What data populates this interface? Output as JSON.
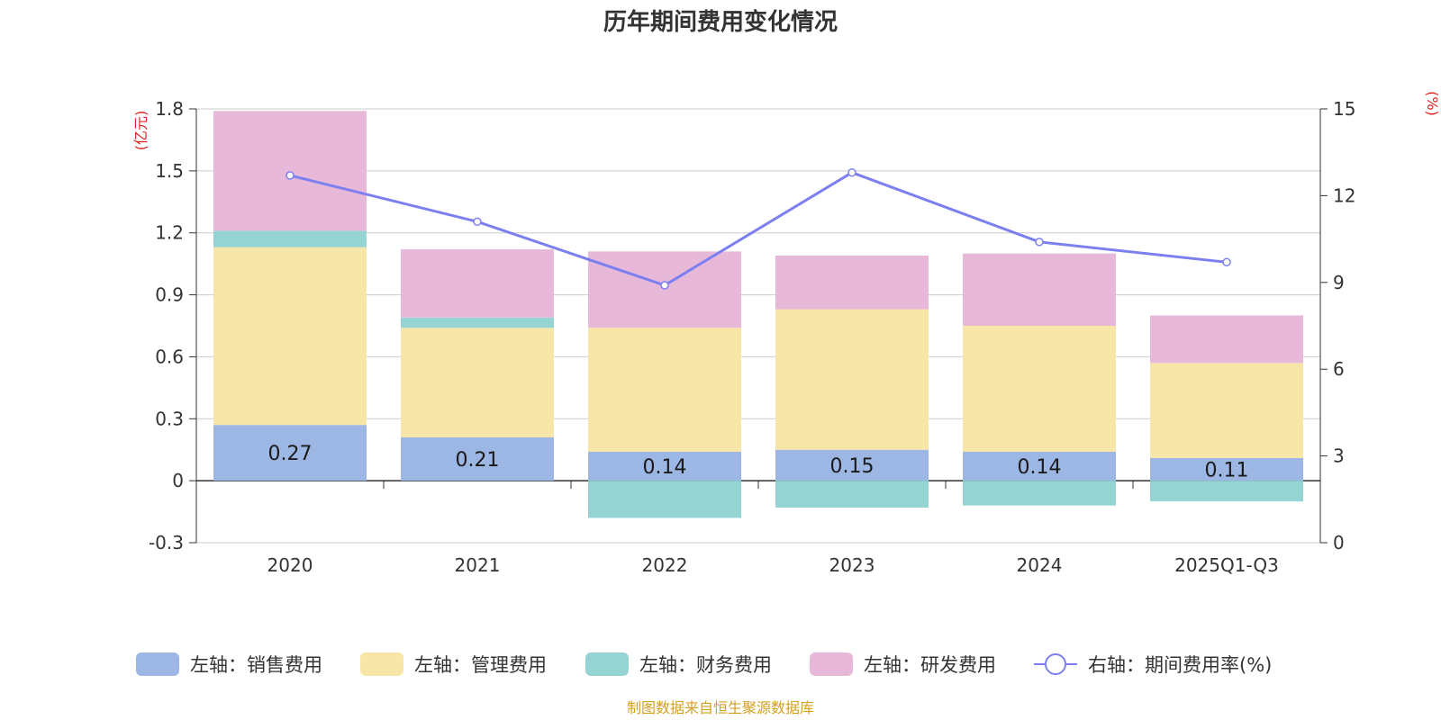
{
  "chart_data": {
    "type": "bar",
    "title": "历年期间费用变化情况",
    "categories": [
      "2020",
      "2021",
      "2022",
      "2023",
      "2024",
      "2025Q1-Q3"
    ],
    "left_axis": {
      "unit": "(亿元)",
      "ylim": [
        -0.3,
        1.8
      ],
      "ticks": [
        "-0.3",
        "0",
        "0.3",
        "0.6",
        "0.9",
        "1.2",
        "1.5",
        "1.8"
      ]
    },
    "right_axis": {
      "unit": "(%)",
      "ylim": [
        0,
        15
      ],
      "ticks": [
        "0",
        "3",
        "6",
        "9",
        "12",
        "15"
      ]
    },
    "grid": true,
    "series": [
      {
        "name": "左轴：销售费用",
        "type": "bar",
        "color": "#9cb7e3",
        "values": [
          0.27,
          0.21,
          0.14,
          0.15,
          0.14,
          0.11
        ],
        "labels": [
          "0.27",
          "0.21",
          "0.14",
          "0.15",
          "0.14",
          "0.11"
        ]
      },
      {
        "name": "左轴：管理费用",
        "type": "bar",
        "color": "#f8e6a8",
        "values": [
          0.86,
          0.53,
          0.6,
          0.68,
          0.61,
          0.46
        ]
      },
      {
        "name": "左轴：财务费用",
        "type": "bar",
        "color": "#96d4d4",
        "values": [
          0.08,
          0.05,
          -0.18,
          -0.13,
          -0.12,
          -0.1
        ]
      },
      {
        "name": "左轴：研发费用",
        "type": "bar",
        "color": "#e8b8d9",
        "values": [
          0.58,
          0.33,
          0.37,
          0.26,
          0.35,
          0.23
        ]
      },
      {
        "name": "右轴：期间费用率(%)",
        "type": "line",
        "color": "#7b7ff0",
        "values": [
          12.7,
          11.1,
          8.9,
          12.8,
          10.4,
          9.7
        ]
      }
    ],
    "legend_position": "bottom"
  },
  "source_note": "制图数据来自恒生聚源数据库"
}
